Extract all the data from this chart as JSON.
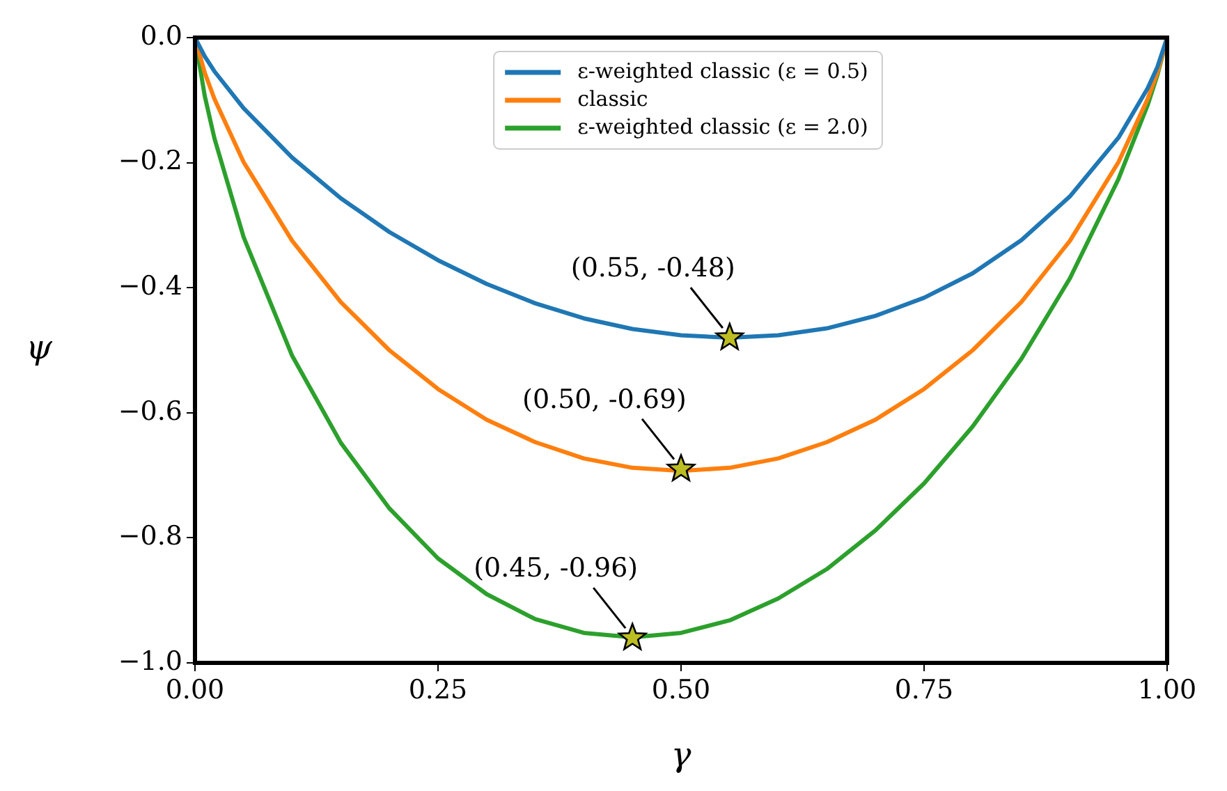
{
  "chart_data": {
    "type": "line",
    "xlabel": "γ",
    "ylabel": "ψ",
    "x": [
      0,
      0.01,
      0.02,
      0.05,
      0.1,
      0.15,
      0.2,
      0.25,
      0.3,
      0.35,
      0.4,
      0.45,
      0.5,
      0.55,
      0.6,
      0.65,
      0.7,
      0.75,
      0.8,
      0.85,
      0.9,
      0.95,
      0.98,
      0.99,
      1
    ],
    "series": [
      {
        "name": "ε-weighted classic (ε = 0.5)",
        "color": "#1f77b4",
        "values": [
          0,
          -0.03,
          -0.054,
          -0.113,
          -0.192,
          -0.257,
          -0.311,
          -0.356,
          -0.394,
          -0.425,
          -0.449,
          -0.466,
          -0.476,
          -0.48,
          -0.476,
          -0.465,
          -0.445,
          -0.416,
          -0.377,
          -0.324,
          -0.254,
          -0.16,
          -0.081,
          -0.047,
          0
        ]
      },
      {
        "name": "classic",
        "color": "#ff7f0e",
        "values": [
          0,
          -0.056,
          -0.098,
          -0.199,
          -0.325,
          -0.423,
          -0.5,
          -0.562,
          -0.611,
          -0.647,
          -0.673,
          -0.688,
          -0.693,
          -0.688,
          -0.673,
          -0.647,
          -0.611,
          -0.562,
          -0.5,
          -0.423,
          -0.325,
          -0.199,
          -0.098,
          -0.056,
          0
        ]
      },
      {
        "name": "ε-weighted classic (ε = 2.0)",
        "color": "#2ca02c",
        "values": [
          0,
          -0.093,
          -0.161,
          -0.319,
          -0.509,
          -0.648,
          -0.753,
          -0.833,
          -0.89,
          -0.93,
          -0.952,
          -0.959,
          -0.952,
          -0.932,
          -0.897,
          -0.85,
          -0.788,
          -0.713,
          -0.622,
          -0.514,
          -0.385,
          -0.226,
          -0.108,
          -0.06,
          0
        ]
      },
      {
        "type": "scatter",
        "marker": "star",
        "color": "#bcbd22",
        "x": [
          0.55,
          0.5,
          0.45
        ],
        "values": [
          -0.48,
          -0.69,
          -0.96
        ]
      }
    ],
    "annotations": [
      {
        "text": "(0.55, -0.48)",
        "x": 0.55,
        "y": -0.48
      },
      {
        "text": "(0.50, -0.69)",
        "x": 0.5,
        "y": -0.69
      },
      {
        "text": "(0.45, -0.96)",
        "x": 0.45,
        "y": -0.96
      }
    ],
    "xlim": [
      0,
      1
    ],
    "xticks": [
      {
        "value": 0,
        "label": "0.00"
      },
      {
        "value": 0.25,
        "label": "0.25"
      },
      {
        "value": 0.5,
        "label": "0.50"
      },
      {
        "value": 0.75,
        "label": "0.75"
      },
      {
        "value": 1,
        "label": "1.00"
      }
    ],
    "ylim": [
      -1,
      0
    ],
    "yticks": [
      {
        "value": -1,
        "label": "−1.0"
      },
      {
        "value": -0.8,
        "label": "−0.8"
      },
      {
        "value": -0.6,
        "label": "−0.6"
      },
      {
        "value": -0.4,
        "label": "−0.4"
      },
      {
        "value": -0.2,
        "label": "−0.2"
      },
      {
        "value": 0,
        "label": "0.0"
      }
    ],
    "grid": false,
    "legend": "top",
    "marker": "none",
    "line_style": "solid"
  }
}
